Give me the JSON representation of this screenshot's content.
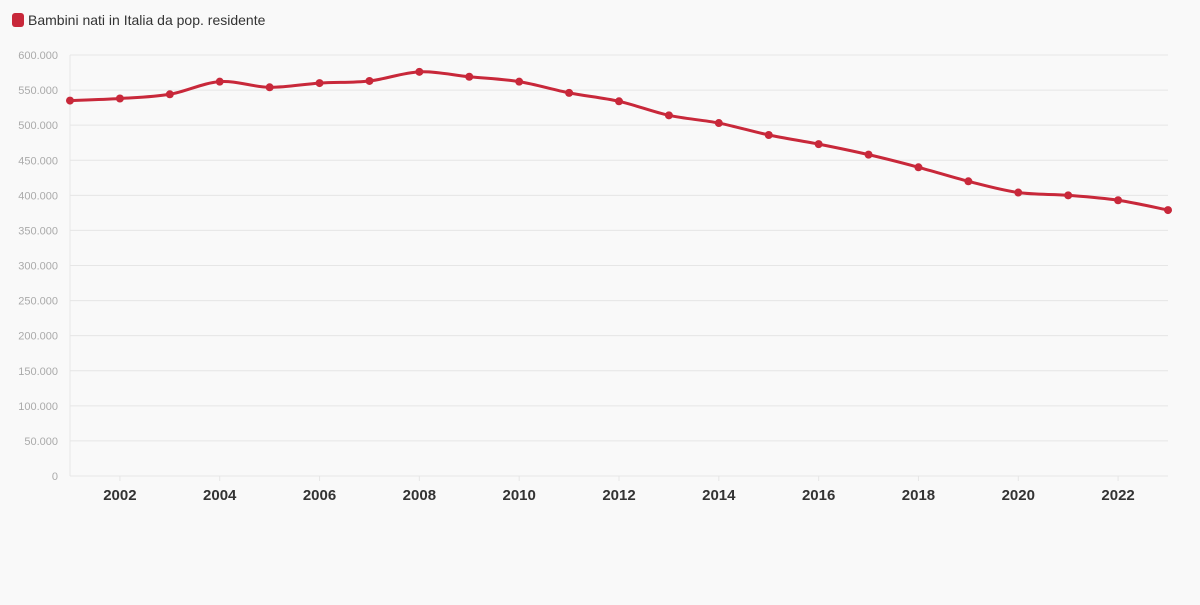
{
  "chart_data": {
    "type": "line",
    "series": [
      {
        "name": "Bambini nati in Italia da pop. residente",
        "color": "#c8283a",
        "x": [
          2001,
          2002,
          2003,
          2004,
          2005,
          2006,
          2007,
          2008,
          2009,
          2010,
          2011,
          2012,
          2013,
          2014,
          2015,
          2016,
          2017,
          2018,
          2019,
          2020,
          2021,
          2022,
          2023
        ],
        "values": [
          535000,
          538000,
          544000,
          562000,
          554000,
          560000,
          563000,
          576000,
          569000,
          562000,
          546000,
          534000,
          514000,
          503000,
          486000,
          473000,
          458000,
          440000,
          420000,
          404000,
          400000,
          393000,
          379000
        ]
      }
    ],
    "x_ticks": [
      "2002",
      "2004",
      "2006",
      "2008",
      "2010",
      "2012",
      "2014",
      "2016",
      "2018",
      "2020",
      "2022"
    ],
    "y_ticks": [
      "0",
      "50.000",
      "100.000",
      "150.000",
      "200.000",
      "250.000",
      "300.000",
      "350.000",
      "400.000",
      "450.000",
      "500.000",
      "550.000",
      "600.000"
    ],
    "xlim": [
      2001,
      2023
    ],
    "ylim": [
      0,
      600000
    ],
    "grid": true,
    "legend_position": "top-left",
    "title": "",
    "xlabel": "",
    "ylabel": ""
  }
}
